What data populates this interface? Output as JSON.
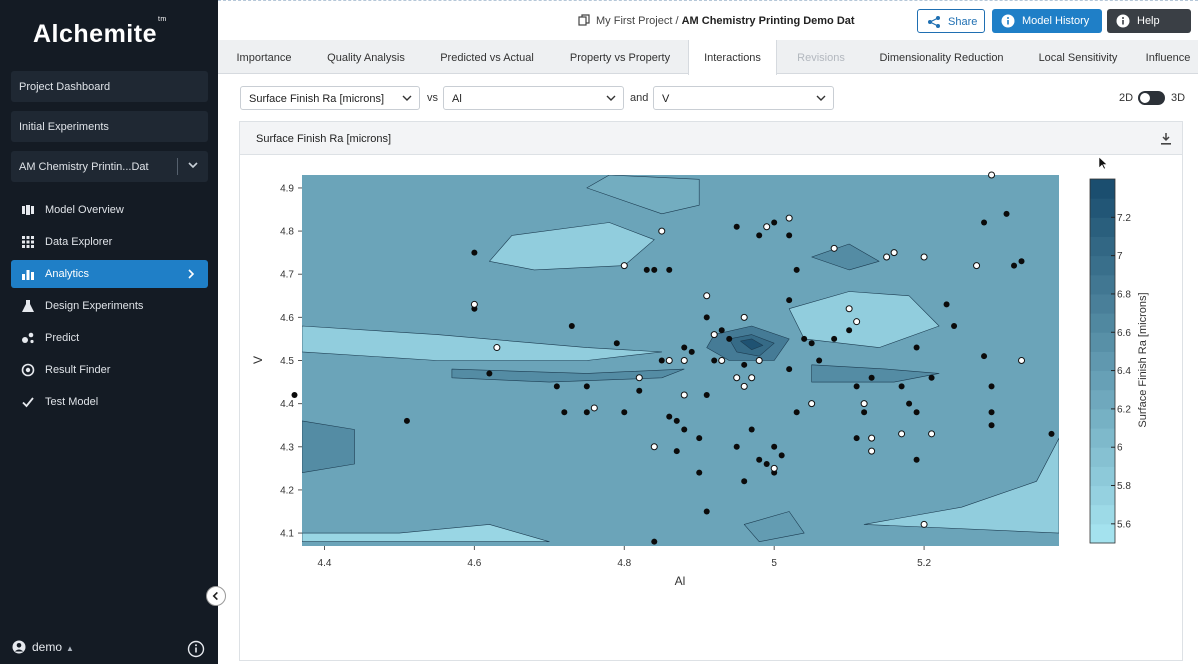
{
  "sidebar": {
    "logo": "Alchemite",
    "logo_tm": "tm",
    "boxes": [
      "Project Dashboard",
      "Initial Experiments"
    ],
    "project_select": "AM Chemistry Printin...Dat",
    "nav": [
      {
        "label": "Model Overview",
        "icon": "model-overview-icon"
      },
      {
        "label": "Data Explorer",
        "icon": "grid-icon"
      },
      {
        "label": "Analytics",
        "icon": "bar-chart-icon",
        "active": true
      },
      {
        "label": "Design Experiments",
        "icon": "flask-icon"
      },
      {
        "label": "Predict",
        "icon": "predict-icon"
      },
      {
        "label": "Result Finder",
        "icon": "target-icon"
      },
      {
        "label": "Test Model",
        "icon": "check-icon"
      }
    ],
    "user": "demo"
  },
  "header": {
    "breadcrumb_project": "My First Project",
    "breadcrumb_sep": "/",
    "breadcrumb_dataset": "AM Chemistry Printing Demo Dat",
    "share": "Share",
    "history": "Model History",
    "help": "Help"
  },
  "tabs": [
    {
      "label": "Importance",
      "state": "normal"
    },
    {
      "label": "Quality Analysis",
      "state": "normal"
    },
    {
      "label": "Predicted vs Actual",
      "state": "normal"
    },
    {
      "label": "Property vs Property",
      "state": "normal"
    },
    {
      "label": "Interactions",
      "state": "active"
    },
    {
      "label": "Revisions",
      "state": "disabled"
    },
    {
      "label": "Dimensionality Reduction",
      "state": "normal"
    },
    {
      "label": "Local Sensitivity",
      "state": "normal"
    },
    {
      "label": "Influence",
      "state": "normal"
    }
  ],
  "controls": {
    "target": "Surface Finish Ra [microns]",
    "vs": "vs",
    "x_var": "Al",
    "and": "and",
    "y_var": "V",
    "mode_2d": "2D",
    "mode_3d": "3D",
    "mode_selected": "2D"
  },
  "panel": {
    "title": "Surface Finish Ra [microns]"
  },
  "chart_data": {
    "type": "contour",
    "xlabel": "Al",
    "ylabel": "V",
    "xlim": [
      4.37,
      5.38
    ],
    "ylim": [
      4.07,
      4.93
    ],
    "x_ticks": [
      4.4,
      4.6,
      4.8,
      5,
      5.2
    ],
    "y_ticks": [
      4.1,
      4.2,
      4.3,
      4.4,
      4.5,
      4.6,
      4.7,
      4.8,
      4.9
    ],
    "colorbar": {
      "label": "Surface Finish Ra [microns]",
      "ticks": [
        5.6,
        5.8,
        6,
        6.2,
        6.4,
        6.6,
        6.8,
        7,
        7.2
      ],
      "range": [
        5.5,
        7.4
      ]
    },
    "colors": {
      "low": "#a8e6f2",
      "high": "#174a6b"
    },
    "contour_features": [
      {
        "level": 5.8,
        "polygon": [
          [
            4.37,
            4.58
          ],
          [
            4.55,
            4.56
          ],
          [
            4.75,
            4.53
          ],
          [
            4.85,
            4.52
          ],
          [
            4.75,
            4.5
          ],
          [
            4.55,
            4.5
          ],
          [
            4.37,
            4.52
          ]
        ]
      },
      {
        "level": 5.8,
        "polygon": [
          [
            4.65,
            4.79
          ],
          [
            4.78,
            4.82
          ],
          [
            4.84,
            4.78
          ],
          [
            4.8,
            4.72
          ],
          [
            4.68,
            4.71
          ],
          [
            4.62,
            4.73
          ]
        ]
      },
      {
        "level": 5.8,
        "polygon": [
          [
            5.02,
            4.62
          ],
          [
            5.1,
            4.66
          ],
          [
            5.18,
            4.65
          ],
          [
            5.22,
            4.58
          ],
          [
            5.14,
            4.53
          ],
          [
            5.04,
            4.55
          ]
        ]
      },
      {
        "level": 5.7,
        "polygon": [
          [
            4.37,
            4.1
          ],
          [
            4.5,
            4.1
          ],
          [
            4.62,
            4.12
          ],
          [
            4.7,
            4.08
          ],
          [
            4.45,
            4.08
          ],
          [
            4.37,
            4.08
          ]
        ]
      },
      {
        "level": 5.8,
        "polygon": [
          [
            5.12,
            4.12
          ],
          [
            5.25,
            4.16
          ],
          [
            5.35,
            4.22
          ],
          [
            5.38,
            4.32
          ],
          [
            5.38,
            4.1
          ]
        ]
      },
      {
        "level": 6.2,
        "polygon": [
          [
            4.75,
            4.9
          ],
          [
            4.85,
            4.84
          ],
          [
            4.9,
            4.86
          ],
          [
            4.9,
            4.92
          ],
          [
            4.78,
            4.93
          ]
        ]
      },
      {
        "level": 6.6,
        "polygon": [
          [
            4.57,
            4.48
          ],
          [
            4.75,
            4.47
          ],
          [
            4.88,
            4.48
          ],
          [
            4.85,
            4.46
          ],
          [
            4.7,
            4.45
          ],
          [
            4.57,
            4.46
          ]
        ]
      },
      {
        "level": 6.6,
        "polygon": [
          [
            5.05,
            4.49
          ],
          [
            5.15,
            4.48
          ],
          [
            5.22,
            4.47
          ],
          [
            5.16,
            4.45
          ],
          [
            5.05,
            4.45
          ]
        ]
      },
      {
        "level": 6.6,
        "polygon": [
          [
            5.05,
            4.74
          ],
          [
            5.1,
            4.77
          ],
          [
            5.14,
            4.73
          ],
          [
            5.1,
            4.71
          ]
        ]
      },
      {
        "level": 6.6,
        "polygon": [
          [
            4.37,
            4.36
          ],
          [
            4.44,
            4.34
          ],
          [
            4.44,
            4.26
          ],
          [
            4.37,
            4.24
          ]
        ]
      },
      {
        "level": 6.4,
        "polygon": [
          [
            4.96,
            4.12
          ],
          [
            5.02,
            4.15
          ],
          [
            5.04,
            4.1
          ],
          [
            4.98,
            4.08
          ]
        ]
      },
      {
        "level": 6.8,
        "polygon": [
          [
            4.92,
            4.56
          ],
          [
            4.97,
            4.58
          ],
          [
            5.02,
            4.55
          ],
          [
            5,
            4.5
          ],
          [
            4.94,
            4.5
          ],
          [
            4.91,
            4.53
          ]
        ]
      },
      {
        "level": 7.0,
        "polygon": [
          [
            4.94,
            4.55
          ],
          [
            4.97,
            4.56
          ],
          [
            5,
            4.54
          ],
          [
            4.98,
            4.51
          ],
          [
            4.95,
            4.52
          ]
        ]
      },
      {
        "level": 7.3,
        "polygon": [
          [
            4.955,
            4.545
          ],
          [
            4.97,
            4.55
          ],
          [
            4.985,
            4.535
          ],
          [
            4.97,
            4.525
          ]
        ]
      }
    ],
    "points_filled": [
      [
        4.36,
        4.42
      ],
      [
        4.51,
        4.36
      ],
      [
        4.6,
        4.75
      ],
      [
        4.6,
        4.62
      ],
      [
        4.62,
        4.47
      ],
      [
        4.71,
        4.44
      ],
      [
        4.73,
        4.58
      ],
      [
        4.72,
        4.38
      ],
      [
        4.75,
        4.44
      ],
      [
        4.75,
        4.38
      ],
      [
        4.79,
        4.54
      ],
      [
        4.8,
        4.38
      ],
      [
        4.82,
        4.43
      ],
      [
        4.83,
        4.71
      ],
      [
        4.84,
        4.71
      ],
      [
        4.86,
        4.71
      ],
      [
        4.85,
        4.5
      ],
      [
        4.88,
        4.53
      ],
      [
        4.89,
        4.52
      ],
      [
        4.86,
        4.37
      ],
      [
        4.87,
        4.36
      ],
      [
        4.88,
        4.34
      ],
      [
        4.84,
        4.3
      ],
      [
        4.87,
        4.29
      ],
      [
        4.9,
        4.32
      ],
      [
        4.9,
        4.24
      ],
      [
        4.91,
        4.15
      ],
      [
        4.91,
        4.6
      ],
      [
        4.93,
        4.57
      ],
      [
        4.94,
        4.55
      ],
      [
        4.92,
        4.5
      ],
      [
        4.95,
        4.81
      ],
      [
        4.98,
        4.79
      ],
      [
        5.0,
        4.82
      ],
      [
        5.02,
        4.79
      ],
      [
        5.03,
        4.71
      ],
      [
        5.02,
        4.64
      ],
      [
        5.04,
        4.55
      ],
      [
        5.05,
        4.54
      ],
      [
        5.06,
        4.5
      ],
      [
        5.08,
        4.55
      ],
      [
        5.1,
        4.57
      ],
      [
        5.11,
        4.44
      ],
      [
        5.12,
        4.38
      ],
      [
        5.11,
        4.32
      ],
      [
        5.13,
        4.46
      ],
      [
        5.17,
        4.44
      ],
      [
        5.18,
        4.4
      ],
      [
        5.19,
        4.38
      ],
      [
        5.19,
        4.27
      ],
      [
        5.19,
        4.53
      ],
      [
        5.21,
        4.46
      ],
      [
        5.23,
        4.63
      ],
      [
        5.24,
        4.58
      ],
      [
        5.28,
        4.82
      ],
      [
        5.28,
        4.51
      ],
      [
        5.29,
        4.44
      ],
      [
        5.29,
        4.38
      ],
      [
        5.29,
        4.35
      ],
      [
        5.31,
        4.84
      ],
      [
        5.32,
        4.72
      ],
      [
        5.33,
        4.73
      ],
      [
        5.37,
        4.33
      ],
      [
        4.96,
        4.49
      ],
      [
        4.97,
        4.34
      ],
      [
        4.98,
        4.27
      ],
      [
        5.0,
        4.3
      ],
      [
        5.01,
        4.28
      ],
      [
        5.02,
        4.48
      ],
      [
        5.03,
        4.38
      ],
      [
        4.95,
        4.3
      ],
      [
        4.99,
        4.26
      ],
      [
        5.0,
        4.24
      ],
      [
        4.96,
        4.22
      ],
      [
        4.84,
        4.08
      ],
      [
        4.91,
        4.42
      ]
    ],
    "points_open": [
      [
        4.6,
        4.63
      ],
      [
        4.63,
        4.53
      ],
      [
        4.76,
        4.39
      ],
      [
        4.8,
        4.72
      ],
      [
        4.82,
        4.46
      ],
      [
        4.84,
        4.3
      ],
      [
        4.85,
        4.8
      ],
      [
        4.86,
        4.5
      ],
      [
        4.88,
        4.5
      ],
      [
        4.88,
        4.42
      ],
      [
        4.91,
        4.65
      ],
      [
        4.92,
        4.56
      ],
      [
        4.93,
        4.5
      ],
      [
        4.95,
        4.46
      ],
      [
        4.96,
        4.44
      ],
      [
        4.97,
        4.46
      ],
      [
        4.98,
        4.5
      ],
      [
        5.0,
        4.25
      ],
      [
        5.02,
        4.83
      ],
      [
        5.08,
        4.76
      ],
      [
        5.1,
        4.62
      ],
      [
        5.11,
        4.59
      ],
      [
        5.13,
        4.32
      ],
      [
        5.13,
        4.29
      ],
      [
        5.15,
        4.74
      ],
      [
        5.16,
        4.75
      ],
      [
        5.17,
        4.33
      ],
      [
        5.2,
        4.74
      ],
      [
        5.21,
        4.33
      ],
      [
        5.27,
        4.72
      ],
      [
        5.29,
        4.93
      ],
      [
        5.33,
        4.5
      ],
      [
        5.2,
        4.12
      ],
      [
        5.05,
        4.4
      ],
      [
        5.12,
        4.4
      ],
      [
        4.96,
        4.6
      ],
      [
        4.99,
        4.81
      ]
    ]
  }
}
